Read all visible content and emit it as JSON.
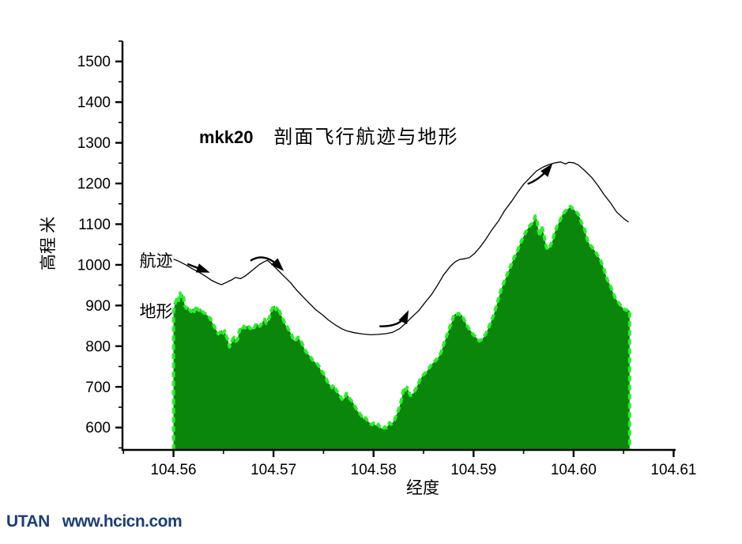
{
  "watermark": {
    "brand": "UTAN",
    "url": "www.hcicn.com"
  },
  "colors": {
    "terrain_fill": "#007c00",
    "terrain_fill_alt": "#149114",
    "terrain_stroke": "#2dee2d",
    "track_stroke": "#000000",
    "axis": "#000000",
    "watermark": "#1b3e73"
  },
  "chart_data": {
    "type": "area",
    "title": "mkk20  剖面飞行航迹与地形",
    "title_bold": "mkk20",
    "title_rest": "剖面飞行航迹与地形",
    "xlabel": "经度",
    "ylabel": "高程 米",
    "xlim": [
      104.5549,
      104.6102
    ],
    "ylim": [
      545,
      1550
    ],
    "x_ticks": [
      104.56,
      104.57,
      104.58,
      104.59,
      104.6,
      104.61
    ],
    "x_minor_ticks": [
      104.555,
      104.565,
      104.575,
      104.585,
      104.595,
      104.605
    ],
    "y_ticks": [
      600,
      700,
      800,
      900,
      1000,
      1100,
      1200,
      1300,
      1400,
      1500
    ],
    "y_minor_ticks": [
      550,
      650,
      750,
      850,
      950,
      1050,
      1150,
      1250,
      1350,
      1450,
      1550
    ],
    "grid": false,
    "legend_position": "inline-labels",
    "series": [
      {
        "name": "地形",
        "type": "area",
        "label_pos": [
          104.5566,
          885
        ],
        "lon_start": 104.56,
        "lon_step": 0.00016,
        "elevations": [
          885,
          905,
          915,
          908,
          931,
          922,
          928,
          900,
          893,
          898,
          890,
          885,
          893,
          885,
          899,
          891,
          888,
          893,
          885,
          882,
          880,
          876,
          872,
          869,
          860,
          852,
          845,
          838,
          830,
          834,
          840,
          832,
          838,
          824,
          815,
          798,
          806,
          818,
          822,
          812,
          816,
          835,
          846,
          842,
          849,
          845,
          851,
          848,
          843,
          846,
          841,
          850,
          857,
          852,
          849,
          855,
          862,
          866,
          856,
          861,
          872,
          886,
          895,
          900,
          890,
          897,
          888,
          878,
          870,
          862,
          852,
          848,
          840,
          834,
          826,
          816,
          812,
          818,
          822,
          814,
          810,
          801,
          792,
          785,
          781,
          777,
          772,
          765,
          762,
          758,
          756,
          750,
          741,
          737,
          731,
          724,
          714,
          708,
          704,
          698,
          705,
          697,
          690,
          684,
          679,
          671,
          667,
          674,
          684,
          679,
          672,
          667,
          663,
          655,
          648,
          640,
          637,
          631,
          626,
          620,
          624,
          618,
          614,
          610,
          607,
          611,
          606,
          604,
          608,
          601,
          598,
          596,
          602,
          599,
          604,
          612,
          608,
          612,
          618,
          628,
          638,
          648,
          662,
          680,
          698,
          692,
          699,
          688,
          679,
          682,
          685,
          692,
          700,
          708,
          717,
          724,
          729,
          733,
          737,
          742,
          748,
          754,
          758,
          762,
          766,
          770,
          776,
          784,
          794,
          806,
          818,
          829,
          840,
          851,
          860,
          874,
          880,
          878,
          881,
          877,
          878,
          870,
          862,
          853,
          847,
          841,
          836,
          830,
          826,
          822,
          818,
          813,
          815,
          818,
          823,
          830,
          838,
          847,
          856,
          866,
          876,
          889,
          902,
          916,
          929,
          942,
          952,
          962,
          971,
          982,
          991,
          1000,
          1010,
          1019,
          1027,
          1035,
          1046,
          1056,
          1063,
          1072,
          1080,
          1087,
          1093,
          1098,
          1102,
          1106,
          1120,
          1112,
          1086,
          1070,
          1096,
          1082,
          1062,
          1043,
          1037,
          1044,
          1052,
          1061,
          1078,
          1088,
          1097,
          1105,
          1114,
          1123,
          1128,
          1133,
          1136,
          1139,
          1144,
          1140,
          1136,
          1133,
          1129,
          1124,
          1115,
          1103,
          1094,
          1086,
          1070,
          1058,
          1050,
          1046,
          1041,
          1036,
          1030,
          1023,
          1017,
          1010,
          1000,
          989,
          976,
          964,
          957,
          948,
          938,
          928,
          919,
          913,
          908,
          902,
          897,
          893,
          890,
          888,
          891,
          887
        ]
      },
      {
        "name": "航迹",
        "type": "line",
        "label_pos": [
          104.5566,
          1010
        ],
        "points": [
          [
            104.56,
            1014
          ],
          [
            104.5606,
            1008
          ],
          [
            104.5613,
            999
          ],
          [
            104.5619,
            990
          ],
          [
            104.5626,
            981
          ],
          [
            104.5632,
            972
          ],
          [
            104.5638,
            962
          ],
          [
            104.5643,
            956
          ],
          [
            104.5648,
            951
          ],
          [
            104.5653,
            957
          ],
          [
            104.5658,
            963
          ],
          [
            104.5662,
            969
          ],
          [
            104.5667,
            966
          ],
          [
            104.5672,
            973
          ],
          [
            104.5677,
            983
          ],
          [
            104.5682,
            993
          ],
          [
            104.5686,
            1001
          ],
          [
            104.5691,
            1008
          ],
          [
            104.5694,
            1011
          ],
          [
            104.5699,
            1000
          ],
          [
            104.5704,
            988
          ],
          [
            104.571,
            973
          ],
          [
            104.5717,
            956
          ],
          [
            104.5723,
            938
          ],
          [
            104.573,
            920
          ],
          [
            104.5736,
            905
          ],
          [
            104.5742,
            890
          ],
          [
            104.5749,
            877
          ],
          [
            104.5755,
            864
          ],
          [
            104.5762,
            852
          ],
          [
            104.5768,
            843
          ],
          [
            104.5774,
            837
          ],
          [
            104.5781,
            833
          ],
          [
            104.5789,
            830
          ],
          [
            104.5797,
            828
          ],
          [
            104.5805,
            829
          ],
          [
            104.5813,
            831
          ],
          [
            104.5819,
            834
          ],
          [
            104.5826,
            843
          ],
          [
            104.5832,
            856
          ],
          [
            104.5838,
            871
          ],
          [
            104.5845,
            887
          ],
          [
            104.5851,
            906
          ],
          [
            104.5858,
            927
          ],
          [
            104.5864,
            950
          ],
          [
            104.587,
            975
          ],
          [
            104.5877,
            997
          ],
          [
            104.5882,
            1008
          ],
          [
            104.5886,
            1013
          ],
          [
            104.5891,
            1015
          ],
          [
            104.5896,
            1018
          ],
          [
            104.5901,
            1028
          ],
          [
            104.5906,
            1042
          ],
          [
            104.5912,
            1062
          ],
          [
            104.5918,
            1085
          ],
          [
            104.5925,
            1108
          ],
          [
            104.5931,
            1133
          ],
          [
            104.5938,
            1156
          ],
          [
            104.5944,
            1178
          ],
          [
            104.595,
            1198
          ],
          [
            104.5957,
            1216
          ],
          [
            104.5963,
            1231
          ],
          [
            104.597,
            1241
          ],
          [
            104.5976,
            1247
          ],
          [
            104.5982,
            1251
          ],
          [
            104.5987,
            1253
          ],
          [
            104.5992,
            1248
          ],
          [
            104.5995,
            1252
          ],
          [
            104.6,
            1251
          ],
          [
            104.6005,
            1245
          ],
          [
            104.6011,
            1232
          ],
          [
            104.6018,
            1215
          ],
          [
            104.6024,
            1196
          ],
          [
            104.603,
            1174
          ],
          [
            104.6037,
            1152
          ],
          [
            104.6043,
            1130
          ],
          [
            104.605,
            1114
          ],
          [
            104.6055,
            1105
          ]
        ]
      }
    ],
    "arrows": [
      {
        "start": [
          104.5614,
          1002
        ],
        "ctrl": [
          104.5622,
          994
        ],
        "end": [
          104.5632,
          985
        ]
      },
      {
        "start": [
          104.5677,
          1010
        ],
        "ctrl": [
          104.5691,
          1033
        ],
        "end": [
          104.5707,
          993
        ]
      },
      {
        "start": [
          104.5806,
          849
        ],
        "ctrl": [
          104.5827,
          847
        ],
        "end": [
          104.5833,
          878
        ]
      },
      {
        "start": [
          104.5954,
          1199
        ],
        "ctrl": [
          104.5966,
          1209
        ],
        "end": [
          104.5976,
          1240
        ]
      }
    ]
  }
}
